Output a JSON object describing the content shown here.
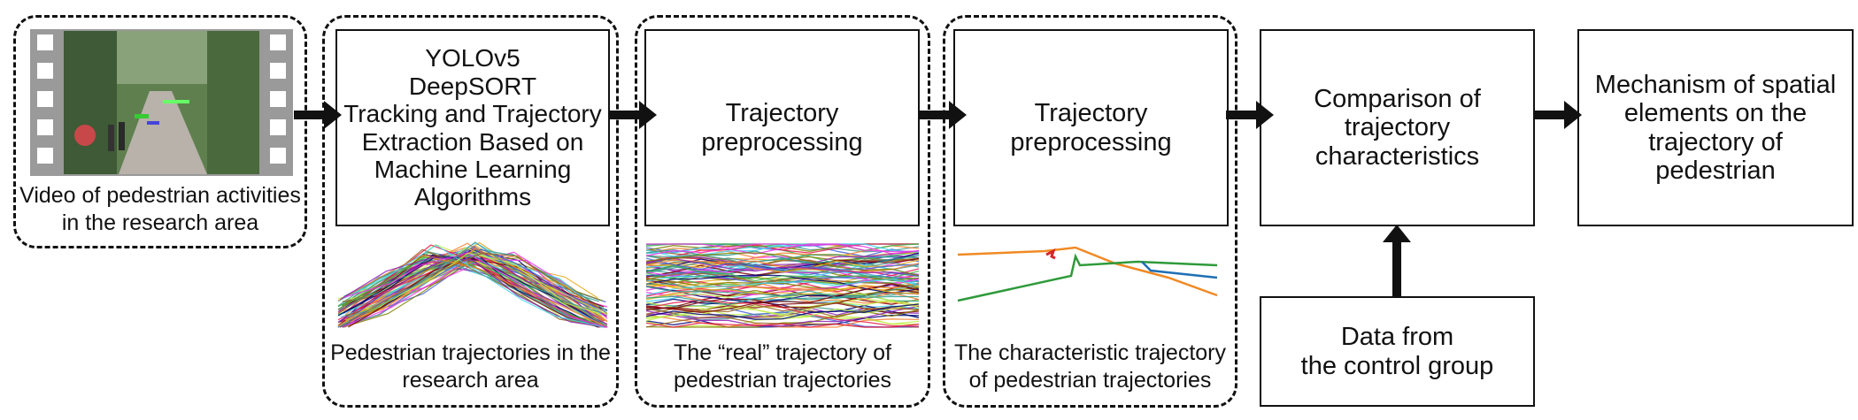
{
  "video_caption": "Video of pedestrian activities\nin the research area",
  "stage1": {
    "title": "YOLOv5\nDeepSORT\nTracking and Trajectory\nExtraction Based on\nMachine Learning\nAlgorithms",
    "caption": "Pedestrian trajectories in the\nresearch area"
  },
  "stage2": {
    "title": "Trajectory\npreprocessing",
    "caption": "The “real” trajectory of\npedestrian trajectories"
  },
  "stage3": {
    "title": "Trajectory\npreprocessing",
    "caption": "The characteristic trajectory\nof pedestrian trajectories"
  },
  "comparison": "Comparison of\ntrajectory\ncharacteristics",
  "mechanism": "Mechanism of spatial\nelements on the\ntrajectory of\npedestrian",
  "control": "Data from\nthe control group",
  "colors": {
    "line": "#111111",
    "orange": "#f08a24",
    "green": "#2e9a3a",
    "blue": "#1f6fb4",
    "red": "#d62728"
  }
}
